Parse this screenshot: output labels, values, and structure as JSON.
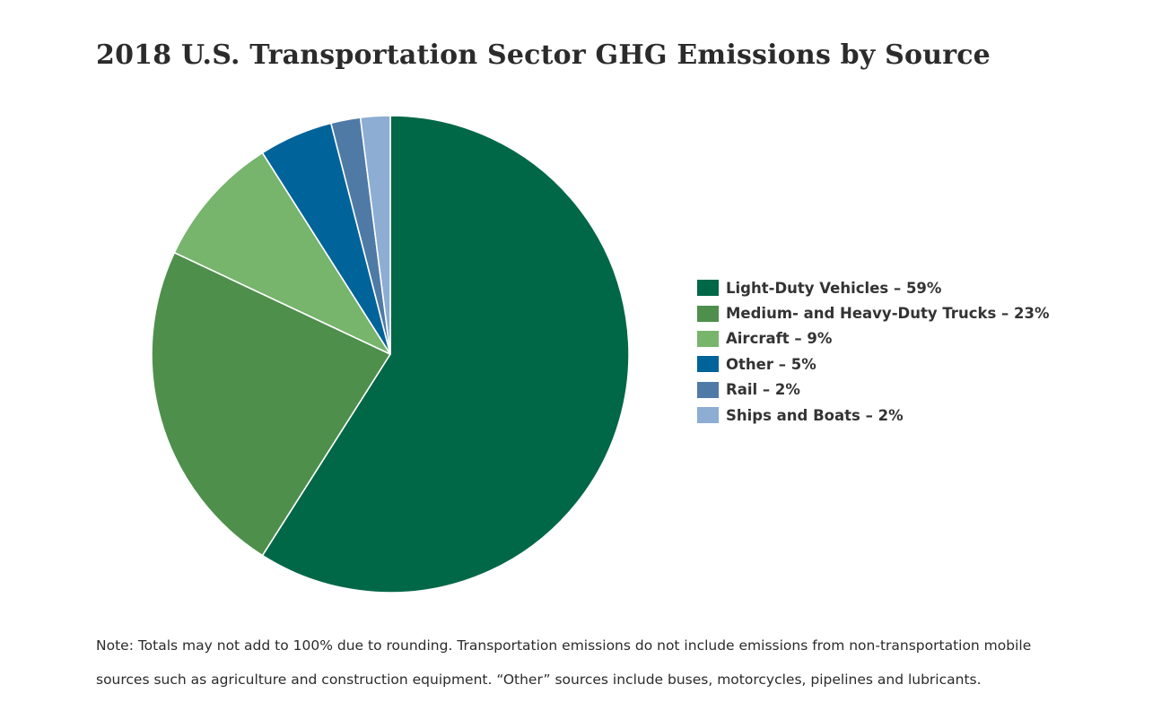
{
  "chart_data": {
    "type": "pie",
    "title": "2018 U.S. Transportation Sector GHG Emissions by Source",
    "slices": [
      {
        "label": "Light-Duty Vehicles",
        "value": 59,
        "legend_text": "Light-Duty Vehicles – 59%",
        "color": "#006747"
      },
      {
        "label": "Medium- and Heavy-Duty Trucks",
        "value": 23,
        "legend_text": "Medium- and Heavy-Duty Trucks – 23%",
        "color": "#4e8f4c"
      },
      {
        "label": "Aircraft",
        "value": 9,
        "legend_text": "Aircraft – 9%",
        "color": "#77b46c"
      },
      {
        "label": "Other",
        "value": 5,
        "legend_text": "Other – 5%",
        "color": "#00639a"
      },
      {
        "label": "Rail",
        "value": 2,
        "legend_text": "Rail – 2%",
        "color": "#4f7aa5"
      },
      {
        "label": "Ships and Boats",
        "value": 2,
        "legend_text": "Ships and Boats – 2%",
        "color": "#8dadd3"
      }
    ],
    "legend_position": "right"
  },
  "note": {
    "line1": "Note: Totals may not add to 100% due to rounding. Transportation emissions do not include emissions from non-transportation mobile",
    "line2": "sources such as agriculture and construction equipment. “Other” sources include buses, motorcycles, pipelines and lubricants."
  }
}
